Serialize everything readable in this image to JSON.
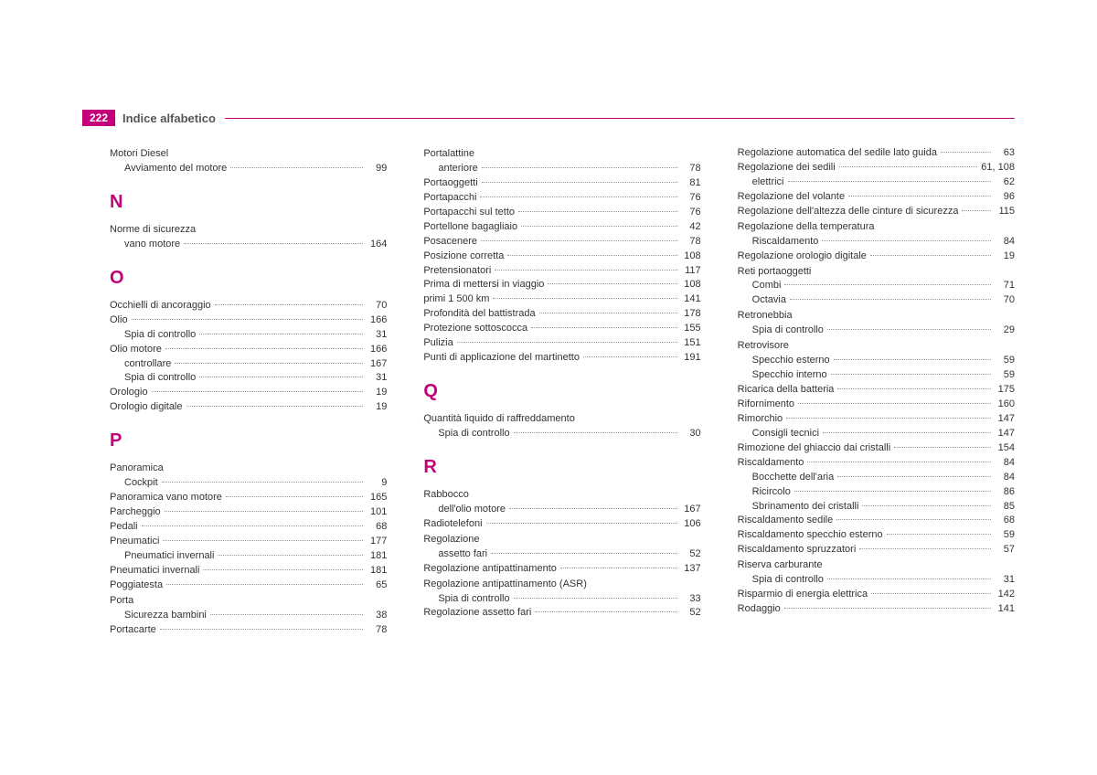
{
  "header": {
    "page_number": "222",
    "title": "Indice alfabetico",
    "accent_color": "#c4007a"
  },
  "columns": [
    {
      "blocks": [
        {
          "type": "group",
          "head": "Motori Diesel",
          "items": [
            {
              "label": "Avviamento del motore",
              "page": "99"
            }
          ]
        },
        {
          "type": "letter",
          "text": "N"
        },
        {
          "type": "group",
          "head": "Norme di sicurezza",
          "items": [
            {
              "label": "vano motore",
              "page": "164"
            }
          ]
        },
        {
          "type": "letter",
          "text": "O"
        },
        {
          "type": "entry",
          "label": "Occhielli di ancoraggio",
          "page": "70"
        },
        {
          "type": "entry",
          "label": "Olio",
          "page": "166"
        },
        {
          "type": "sub",
          "label": "Spia di controllo",
          "page": "31"
        },
        {
          "type": "entry",
          "label": "Olio motore",
          "page": "166"
        },
        {
          "type": "sub",
          "label": "controllare",
          "page": "167"
        },
        {
          "type": "sub",
          "label": "Spia di controllo",
          "page": "31"
        },
        {
          "type": "entry",
          "label": "Orologio",
          "page": "19"
        },
        {
          "type": "entry",
          "label": "Orologio digitale",
          "page": "19"
        },
        {
          "type": "letter",
          "text": "P"
        },
        {
          "type": "group",
          "head": "Panoramica",
          "items": [
            {
              "label": "Cockpit",
              "page": "9"
            }
          ]
        },
        {
          "type": "entry",
          "label": "Panoramica vano motore",
          "page": "165"
        },
        {
          "type": "entry",
          "label": "Parcheggio",
          "page": "101"
        },
        {
          "type": "entry",
          "label": "Pedali",
          "page": "68"
        },
        {
          "type": "entry",
          "label": "Pneumatici",
          "page": "177"
        },
        {
          "type": "sub",
          "label": "Pneumatici invernali",
          "page": "181"
        },
        {
          "type": "entry",
          "label": "Pneumatici invernali",
          "page": "181"
        },
        {
          "type": "entry",
          "label": "Poggiatesta",
          "page": "65"
        },
        {
          "type": "group",
          "head": "Porta",
          "items": [
            {
              "label": "Sicurezza bambini",
              "page": "38"
            }
          ]
        },
        {
          "type": "entry",
          "label": "Portacarte",
          "page": "78"
        }
      ]
    },
    {
      "blocks": [
        {
          "type": "group",
          "head": "Portalattine",
          "items": [
            {
              "label": "anteriore",
              "page": "78"
            }
          ]
        },
        {
          "type": "entry",
          "label": "Portaoggetti",
          "page": "81"
        },
        {
          "type": "entry",
          "label": "Portapacchi",
          "page": "76"
        },
        {
          "type": "entry",
          "label": "Portapacchi sul tetto",
          "page": "76"
        },
        {
          "type": "entry",
          "label": "Portellone bagagliaio",
          "page": "42"
        },
        {
          "type": "entry",
          "label": "Posacenere",
          "page": "78"
        },
        {
          "type": "entry",
          "label": "Posizione corretta",
          "page": "108"
        },
        {
          "type": "entry",
          "label": "Pretensionatori",
          "page": "117"
        },
        {
          "type": "entry",
          "label": "Prima di mettersi in viaggio",
          "page": "108"
        },
        {
          "type": "entry",
          "label": "primi 1 500 km",
          "page": "141"
        },
        {
          "type": "entry",
          "label": "Profondità del battistrada",
          "page": "178"
        },
        {
          "type": "entry",
          "label": "Protezione sottoscocca",
          "page": "155"
        },
        {
          "type": "entry",
          "label": "Pulizia",
          "page": "151"
        },
        {
          "type": "entry",
          "label": "Punti di applicazione del martinetto",
          "page": "191"
        },
        {
          "type": "letter",
          "text": "Q"
        },
        {
          "type": "group",
          "head": "Quantità liquido di raffreddamento",
          "items": [
            {
              "label": "Spia di controllo",
              "page": "30"
            }
          ]
        },
        {
          "type": "letter",
          "text": "R"
        },
        {
          "type": "group",
          "head": "Rabbocco",
          "items": [
            {
              "label": "dell'olio motore",
              "page": "167"
            }
          ]
        },
        {
          "type": "entry",
          "label": "Radiotelefoni",
          "page": "106"
        },
        {
          "type": "group",
          "head": "Regolazione",
          "items": [
            {
              "label": "assetto fari",
              "page": "52"
            }
          ]
        },
        {
          "type": "entry",
          "label": "Regolazione antipattinamento",
          "page": "137"
        },
        {
          "type": "group",
          "head": "Regolazione antipattinamento (ASR)",
          "items": [
            {
              "label": "Spia di controllo",
              "page": "33"
            }
          ]
        },
        {
          "type": "entry",
          "label": "Regolazione assetto fari",
          "page": "52"
        }
      ]
    },
    {
      "blocks": [
        {
          "type": "entry",
          "label": "Regolazione automatica del sedile lato guida",
          "page": "63"
        },
        {
          "type": "entry",
          "label": "Regolazione dei sedili",
          "page": "61, 108"
        },
        {
          "type": "sub",
          "label": "elettrici",
          "page": "62"
        },
        {
          "type": "entry",
          "label": "Regolazione del volante",
          "page": "96"
        },
        {
          "type": "entry",
          "label": "Regolazione dell'altezza delle cinture di sicurezza",
          "page": "115"
        },
        {
          "type": "group",
          "head": "Regolazione della temperatura",
          "items": [
            {
              "label": "Riscaldamento",
              "page": "84"
            }
          ]
        },
        {
          "type": "entry",
          "label": "Regolazione orologio digitale",
          "page": "19"
        },
        {
          "type": "group",
          "head": "Reti portaoggetti",
          "items": [
            {
              "label": "Combi",
              "page": "71"
            },
            {
              "label": "Octavia",
              "page": "70"
            }
          ]
        },
        {
          "type": "group",
          "head": "Retronebbia",
          "items": [
            {
              "label": "Spia di controllo",
              "page": "29"
            }
          ]
        },
        {
          "type": "group",
          "head": "Retrovisore",
          "items": [
            {
              "label": "Specchio esterno",
              "page": "59"
            },
            {
              "label": "Specchio interno",
              "page": "59"
            }
          ]
        },
        {
          "type": "entry",
          "label": "Ricarica della batteria",
          "page": "175"
        },
        {
          "type": "entry",
          "label": "Rifornimento",
          "page": "160"
        },
        {
          "type": "entry",
          "label": "Rimorchio",
          "page": "147"
        },
        {
          "type": "sub",
          "label": "Consigli tecnici",
          "page": "147"
        },
        {
          "type": "entry",
          "label": "Rimozione del ghiaccio dai cristalli",
          "page": "154"
        },
        {
          "type": "entry",
          "label": "Riscaldamento",
          "page": "84"
        },
        {
          "type": "sub",
          "label": "Bocchette dell'aria",
          "page": "84"
        },
        {
          "type": "sub",
          "label": "Ricircolo",
          "page": "86"
        },
        {
          "type": "sub",
          "label": "Sbrinamento dei cristalli",
          "page": "85"
        },
        {
          "type": "entry",
          "label": "Riscaldamento sedile",
          "page": "68"
        },
        {
          "type": "entry",
          "label": "Riscaldamento specchio esterno",
          "page": "59"
        },
        {
          "type": "entry",
          "label": "Riscaldamento spruzzatori",
          "page": "57"
        },
        {
          "type": "group",
          "head": "Riserva carburante",
          "items": [
            {
              "label": "Spia di controllo",
              "page": "31"
            }
          ]
        },
        {
          "type": "entry",
          "label": "Risparmio di energia elettrica",
          "page": "142"
        },
        {
          "type": "entry",
          "label": "Rodaggio",
          "page": "141"
        }
      ]
    }
  ]
}
